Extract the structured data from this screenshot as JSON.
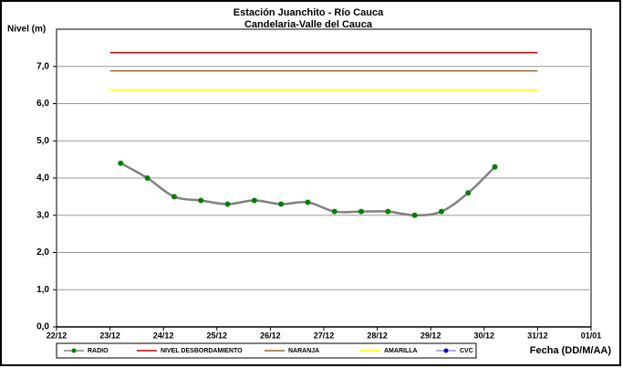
{
  "chart_data": {
    "type": "line",
    "title": "Estación Juanchito - Río Cauca",
    "subtitle": "Candelaria-Valle del Cauca",
    "y_label": "Nivel (m)",
    "x_label": "Fecha (DD/M/AA)",
    "x": [
      1.2,
      1.7,
      2.2,
      2.7,
      3.2,
      3.7,
      4.2,
      4.7,
      5.2,
      5.7,
      6.2,
      6.7,
      7.2,
      7.7,
      8.2
    ],
    "series": [
      {
        "name": "RADIO",
        "color": "#808080",
        "marker_color": "#008000",
        "values": [
          4.4,
          4.0,
          3.5,
          3.4,
          3.3,
          3.4,
          3.3,
          3.35,
          3.1,
          3.1,
          3.1,
          3.0,
          3.1,
          3.6,
          4.3
        ]
      },
      {
        "name": "NIVEL DESBORDAMIENTO",
        "color": "#cc0000",
        "x": [
          1,
          9
        ],
        "values": [
          7.37,
          7.37
        ]
      },
      {
        "name": "NARANJA",
        "color": "#996633",
        "x": [
          1,
          9
        ],
        "values": [
          6.88,
          6.88
        ]
      },
      {
        "name": "AMARILLA",
        "color": "#ffff00",
        "x": [
          1,
          9
        ],
        "values": [
          6.36,
          6.36
        ]
      },
      {
        "name": "CVC",
        "color": "#9999cc",
        "marker_color": "#0000cc",
        "values": [
          null,
          null,
          null,
          null,
          null,
          null,
          null,
          null,
          null,
          null,
          null,
          null,
          null,
          null,
          null
        ]
      }
    ],
    "xlim": [
      0,
      10
    ],
    "xticks": [
      {
        "value": 0,
        "label": "22/12"
      },
      {
        "value": 1,
        "label": "23/12"
      },
      {
        "value": 2,
        "label": "24/12"
      },
      {
        "value": 3,
        "label": "25/12"
      },
      {
        "value": 4,
        "label": "26/12"
      },
      {
        "value": 5,
        "label": "27/12"
      },
      {
        "value": 6,
        "label": "28/12"
      },
      {
        "value": 7,
        "label": "29/12"
      },
      {
        "value": 8,
        "label": "30/12"
      },
      {
        "value": 9,
        "label": "31/12"
      },
      {
        "value": 10,
        "label": "01/01"
      }
    ],
    "ylim": [
      0,
      8
    ],
    "yticks": [
      {
        "value": 0,
        "label": "0,0"
      },
      {
        "value": 1,
        "label": "1,0"
      },
      {
        "value": 2,
        "label": "2,0"
      },
      {
        "value": 3,
        "label": "3,0"
      },
      {
        "value": 4,
        "label": "4,0"
      },
      {
        "value": 5,
        "label": "5,0"
      },
      {
        "value": 6,
        "label": "6,0"
      },
      {
        "value": 7,
        "label": "7,0"
      }
    ],
    "grid": true
  }
}
